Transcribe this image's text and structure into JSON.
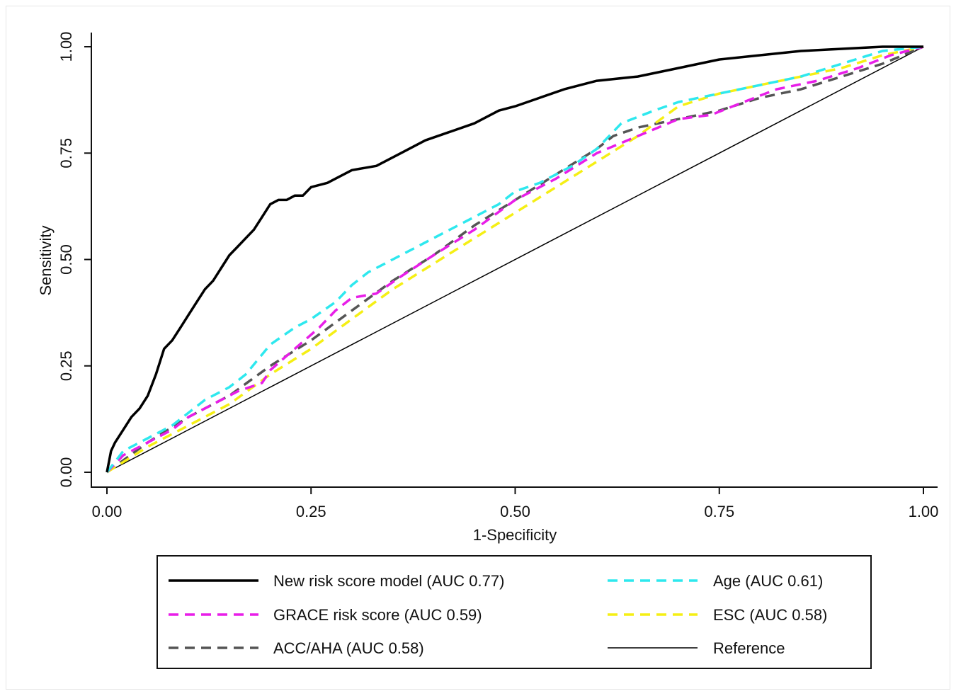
{
  "chart_data": {
    "type": "line",
    "xlabel": "1-Specificity",
    "ylabel": "Sensitivity",
    "xlim": [
      0,
      1
    ],
    "ylim": [
      0,
      1
    ],
    "x_ticks": [
      "0.00",
      "0.25",
      "0.50",
      "0.75",
      "1.00"
    ],
    "y_ticks": [
      "0.00",
      "0.25",
      "0.50",
      "0.75",
      "1.00"
    ],
    "grid": false,
    "legend_position": "bottom",
    "series": [
      {
        "name": "New risk score model (AUC 0.77)",
        "color": "#000000",
        "style": "solid",
        "x": [
          0,
          0.005,
          0.01,
          0.02,
          0.03,
          0.04,
          0.05,
          0.06,
          0.07,
          0.08,
          0.09,
          0.1,
          0.11,
          0.12,
          0.13,
          0.14,
          0.15,
          0.16,
          0.17,
          0.18,
          0.19,
          0.2,
          0.21,
          0.22,
          0.23,
          0.24,
          0.25,
          0.27,
          0.3,
          0.33,
          0.36,
          0.39,
          0.42,
          0.45,
          0.48,
          0.5,
          0.53,
          0.56,
          0.6,
          0.65,
          0.7,
          0.75,
          0.8,
          0.85,
          0.9,
          0.95,
          1.0
        ],
        "y": [
          0,
          0.05,
          0.07,
          0.1,
          0.13,
          0.15,
          0.18,
          0.23,
          0.29,
          0.31,
          0.34,
          0.37,
          0.4,
          0.43,
          0.45,
          0.48,
          0.51,
          0.53,
          0.55,
          0.57,
          0.6,
          0.63,
          0.64,
          0.64,
          0.65,
          0.65,
          0.67,
          0.68,
          0.71,
          0.72,
          0.75,
          0.78,
          0.8,
          0.82,
          0.85,
          0.86,
          0.88,
          0.9,
          0.92,
          0.93,
          0.95,
          0.97,
          0.98,
          0.99,
          0.995,
          1.0,
          1.0
        ]
      },
      {
        "name": "Age (AUC 0.61)",
        "color": "#2ee8ee",
        "style": "dashed",
        "x": [
          0,
          0.02,
          0.05,
          0.08,
          0.1,
          0.12,
          0.15,
          0.17,
          0.2,
          0.23,
          0.25,
          0.28,
          0.3,
          0.32,
          0.35,
          0.4,
          0.45,
          0.48,
          0.5,
          0.53,
          0.57,
          0.6,
          0.63,
          0.67,
          0.7,
          0.75,
          0.8,
          0.85,
          0.9,
          0.95,
          1.0
        ],
        "y": [
          0,
          0.05,
          0.08,
          0.11,
          0.14,
          0.17,
          0.2,
          0.23,
          0.3,
          0.34,
          0.36,
          0.4,
          0.44,
          0.47,
          0.5,
          0.55,
          0.6,
          0.63,
          0.66,
          0.68,
          0.72,
          0.76,
          0.82,
          0.85,
          0.87,
          0.89,
          0.91,
          0.93,
          0.96,
          0.99,
          1.0
        ]
      },
      {
        "name": "GRACE risk score (AUC 0.59)",
        "color": "#e81ee8",
        "style": "dashed",
        "x": [
          0,
          0.02,
          0.05,
          0.08,
          0.1,
          0.13,
          0.16,
          0.19,
          0.2,
          0.23,
          0.26,
          0.28,
          0.3,
          0.33,
          0.36,
          0.4,
          0.45,
          0.5,
          0.55,
          0.6,
          0.65,
          0.7,
          0.74,
          0.78,
          0.82,
          0.87,
          0.92,
          0.96,
          1.0
        ],
        "y": [
          0,
          0.04,
          0.07,
          0.1,
          0.13,
          0.16,
          0.19,
          0.21,
          0.24,
          0.29,
          0.34,
          0.38,
          0.41,
          0.42,
          0.46,
          0.51,
          0.57,
          0.64,
          0.69,
          0.75,
          0.79,
          0.83,
          0.84,
          0.87,
          0.9,
          0.92,
          0.95,
          0.98,
          1.0
        ]
      },
      {
        "name": "ESC (AUC 0.58)",
        "color": "#f5ef14",
        "style": "dashed",
        "x": [
          0,
          0.05,
          0.1,
          0.15,
          0.2,
          0.25,
          0.3,
          0.35,
          0.4,
          0.45,
          0.5,
          0.55,
          0.6,
          0.65,
          0.7,
          0.75,
          0.8,
          0.85,
          0.9,
          0.95,
          1.0
        ],
        "y": [
          0,
          0.06,
          0.11,
          0.16,
          0.23,
          0.29,
          0.36,
          0.43,
          0.49,
          0.55,
          0.61,
          0.67,
          0.73,
          0.79,
          0.86,
          0.89,
          0.91,
          0.93,
          0.95,
          0.98,
          1.0
        ]
      },
      {
        "name": "ACC/AHA (AUC 0.58)",
        "color": "#555555",
        "style": "dashed",
        "x": [
          0,
          0.05,
          0.1,
          0.15,
          0.2,
          0.25,
          0.3,
          0.35,
          0.4,
          0.45,
          0.5,
          0.55,
          0.6,
          0.62,
          0.65,
          0.7,
          0.75,
          0.8,
          0.85,
          0.9,
          0.95,
          1.0
        ],
        "y": [
          0,
          0.07,
          0.13,
          0.18,
          0.25,
          0.31,
          0.38,
          0.45,
          0.51,
          0.58,
          0.64,
          0.7,
          0.76,
          0.79,
          0.81,
          0.83,
          0.85,
          0.88,
          0.9,
          0.93,
          0.96,
          1.0
        ]
      },
      {
        "name": "Reference",
        "color": "#000000",
        "style": "thin",
        "x": [
          0,
          1
        ],
        "y": [
          0,
          1
        ]
      }
    ]
  }
}
